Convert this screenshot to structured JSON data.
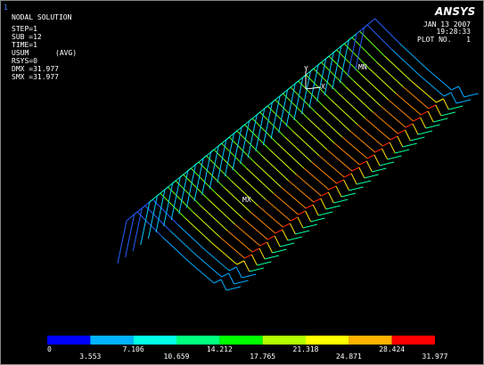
{
  "window_number": "1",
  "header": {
    "title": "NODAL SOLUTION",
    "lines": [
      "STEP=1",
      "SUB =12",
      "TIME=1",
      "USUM",
      "RSYS=0",
      "DMX =31.977",
      "SMX =31.977"
    ],
    "avg": "(AVG)"
  },
  "brand": {
    "logo": "ANSYS",
    "date": "JAN 13 2007",
    "time": "19:28:33",
    "plot_label": "PLOT NO.",
    "plot_number": "1"
  },
  "plot": {
    "min_label": "MN",
    "max_label": "MX",
    "axis_y": "Y",
    "axis_x": "X"
  },
  "legend": {
    "colors": [
      "#0000ff",
      "#00b2ff",
      "#00ffe5",
      "#00ff7f",
      "#00ff00",
      "#b2ff00",
      "#ffff00",
      "#ffb200",
      "#ff0000"
    ],
    "labels": [
      "0",
      "3.553",
      "7.106",
      "10.659",
      "14.212",
      "17.765",
      "21.318",
      "24.871",
      "28.424",
      "31.977"
    ]
  }
}
